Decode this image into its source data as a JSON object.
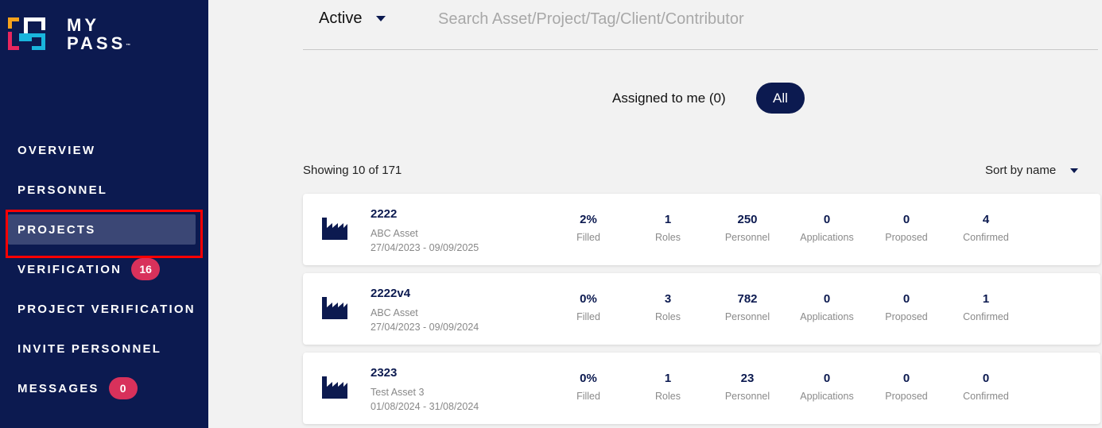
{
  "app": {
    "logo_line1": "MY",
    "logo_line2": "PASS",
    "logo_mark": "™",
    "colors": {
      "navy": "#0c1a50",
      "badge": "#d8315b",
      "highlight": "#ff0000"
    }
  },
  "sidebar": {
    "items": [
      {
        "label": "OVERVIEW"
      },
      {
        "label": "PERSONNEL"
      },
      {
        "label": "PROJECTS"
      },
      {
        "label": "VERIFICATION",
        "badge": "16"
      },
      {
        "label": "PROJECT VERIFICATION"
      },
      {
        "label": "INVITE PERSONNEL"
      },
      {
        "label": "MESSAGES",
        "badge": "0"
      }
    ]
  },
  "toolbar": {
    "status": "Active",
    "search_placeholder": "Search Asset/Project/Tag/Client/Contributor"
  },
  "filters": {
    "assigned": "Assigned to me (0)",
    "all": "All"
  },
  "list": {
    "showing": "Showing 10 of 171",
    "sort": "Sort by name",
    "stat_labels": [
      "Filled",
      "Roles",
      "Personnel",
      "Applications",
      "Proposed",
      "Confirmed"
    ],
    "projects": [
      {
        "name": "2222",
        "asset": "ABC Asset",
        "dates": "27/04/2023 - 09/09/2025",
        "stats": [
          "2%",
          "1",
          "250",
          "0",
          "0",
          "4"
        ]
      },
      {
        "name": "2222v4",
        "asset": "ABC Asset",
        "dates": "27/04/2023 - 09/09/2024",
        "stats": [
          "0%",
          "3",
          "782",
          "0",
          "0",
          "1"
        ]
      },
      {
        "name": "2323",
        "asset": "Test Asset 3",
        "dates": "01/08/2024 - 31/08/2024",
        "stats": [
          "0%",
          "1",
          "23",
          "0",
          "0",
          "0"
        ]
      }
    ]
  }
}
